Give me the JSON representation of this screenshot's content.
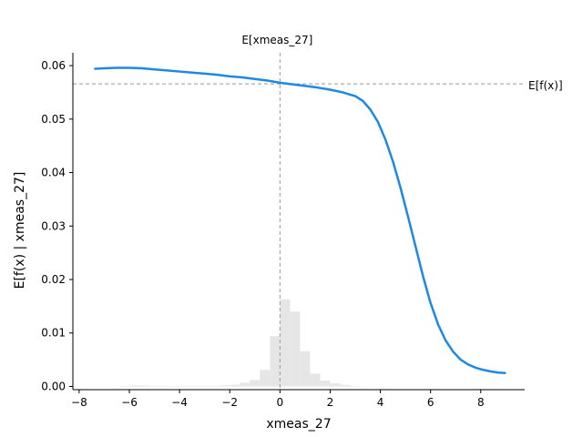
{
  "chart_data": {
    "type": "line",
    "title": "",
    "xlabel": "xmeas_27",
    "ylabel": "E[f(x) | xmeas_27]",
    "xlim": [
      -8.25,
      9.75
    ],
    "ylim": [
      -0.0006,
      0.0624
    ],
    "x_ticks": [
      -8,
      -6,
      -4,
      -2,
      0,
      2,
      4,
      6,
      8
    ],
    "x_tick_labels": [
      "−8",
      "−6",
      "−4",
      "−2",
      "0",
      "2",
      "4",
      "6",
      "8"
    ],
    "y_ticks": [
      0.0,
      0.01,
      0.02,
      0.03,
      0.04,
      0.05,
      0.06
    ],
    "y_tick_labels": [
      "0.00",
      "0.01",
      "0.02",
      "0.03",
      "0.04",
      "0.05",
      "0.06"
    ],
    "grid": false,
    "series": [
      {
        "type": "line",
        "color": "#1e88e5",
        "x": [
          -7.4,
          -7.0,
          -6.5,
          -6.0,
          -5.5,
          -5.0,
          -4.5,
          -4.0,
          -3.5,
          -3.0,
          -2.5,
          -2.0,
          -1.5,
          -1.0,
          -0.5,
          0.0,
          0.5,
          1.0,
          1.5,
          2.0,
          2.5,
          3.0,
          3.3,
          3.6,
          3.9,
          4.2,
          4.5,
          4.8,
          5.1,
          5.4,
          5.7,
          6.0,
          6.3,
          6.6,
          6.9,
          7.2,
          7.5,
          7.8,
          8.1,
          8.4,
          8.7,
          9.0
        ],
        "y": [
          0.0594,
          0.0595,
          0.0596,
          0.0596,
          0.0595,
          0.0593,
          0.0591,
          0.0589,
          0.0587,
          0.0585,
          0.0583,
          0.058,
          0.0578,
          0.0575,
          0.0572,
          0.0568,
          0.0565,
          0.0562,
          0.0559,
          0.0555,
          0.055,
          0.0543,
          0.0534,
          0.0518,
          0.0495,
          0.0462,
          0.0421,
          0.0372,
          0.0318,
          0.0262,
          0.0206,
          0.0156,
          0.0116,
          0.0086,
          0.0065,
          0.005,
          0.0041,
          0.0035,
          0.0031,
          0.0028,
          0.0026,
          0.0025
        ]
      }
    ],
    "reference_lines": {
      "expected_value": 0.0566,
      "expected_value_label": "E[f(x)]",
      "feature_mean": 0.0,
      "feature_mean_label": "E[xmeas_27]",
      "color": "#999999"
    },
    "histogram": {
      "color": "#e6e6e6",
      "bin_width": 0.4,
      "x": [
        -6.2,
        -5.8,
        -5.4,
        -5.0,
        -4.6,
        -4.2,
        -3.8,
        -3.4,
        -3.0,
        -2.6,
        -2.2,
        -1.8,
        -1.4,
        -1.0,
        -0.6,
        -0.2,
        0.2,
        0.6,
        1.0,
        1.4,
        1.8,
        2.2,
        2.6,
        3.0
      ],
      "y": [
        0.0001,
        0.0002,
        0.0002,
        0.0001,
        0.0001,
        0.0001,
        0.0001,
        0.0001,
        0.0001,
        0.0001,
        0.0002,
        0.0003,
        0.0007,
        0.0012,
        0.0031,
        0.0094,
        0.0163,
        0.014,
        0.0066,
        0.0024,
        0.0011,
        0.0006,
        0.0003,
        0.0001
      ]
    }
  }
}
